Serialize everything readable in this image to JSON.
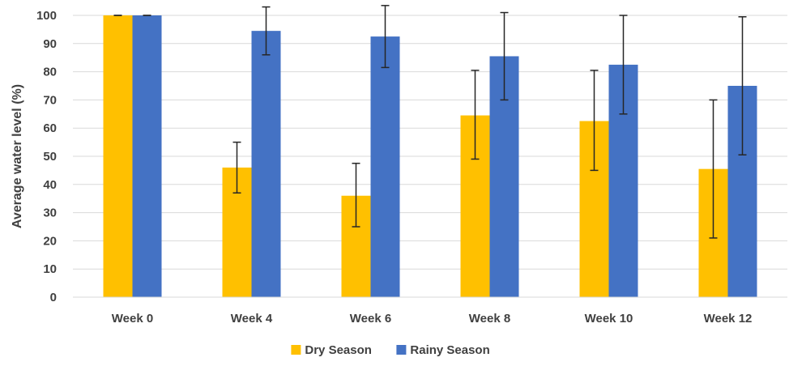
{
  "chart_data": {
    "type": "bar",
    "title": "",
    "xlabel": "",
    "ylabel": "Average water level (%)",
    "ylim": [
      0,
      100
    ],
    "yticks": [
      0,
      10,
      20,
      30,
      40,
      50,
      60,
      70,
      80,
      90,
      100
    ],
    "grid": true,
    "legend_position": "bottom",
    "categories": [
      "Week 0",
      "Week 4",
      "Week 6",
      "Week 8",
      "Week 10",
      "Week 12"
    ],
    "series": [
      {
        "name": "Dry Season",
        "color": "#FFC000",
        "values": [
          100,
          46,
          36,
          64.5,
          62.5,
          45.5
        ],
        "error_low": [
          100,
          37,
          25,
          49,
          45,
          21
        ],
        "error_high": [
          100,
          55,
          47.5,
          80.5,
          80.5,
          70
        ]
      },
      {
        "name": "Rainy Season",
        "color": "#4472C4",
        "values": [
          100,
          94.5,
          92.5,
          85.5,
          82.5,
          75
        ],
        "error_low": [
          100,
          86,
          81.5,
          70,
          65,
          50.5
        ],
        "error_high": [
          100,
          103,
          103.5,
          101,
          100,
          99.5
        ]
      }
    ]
  }
}
